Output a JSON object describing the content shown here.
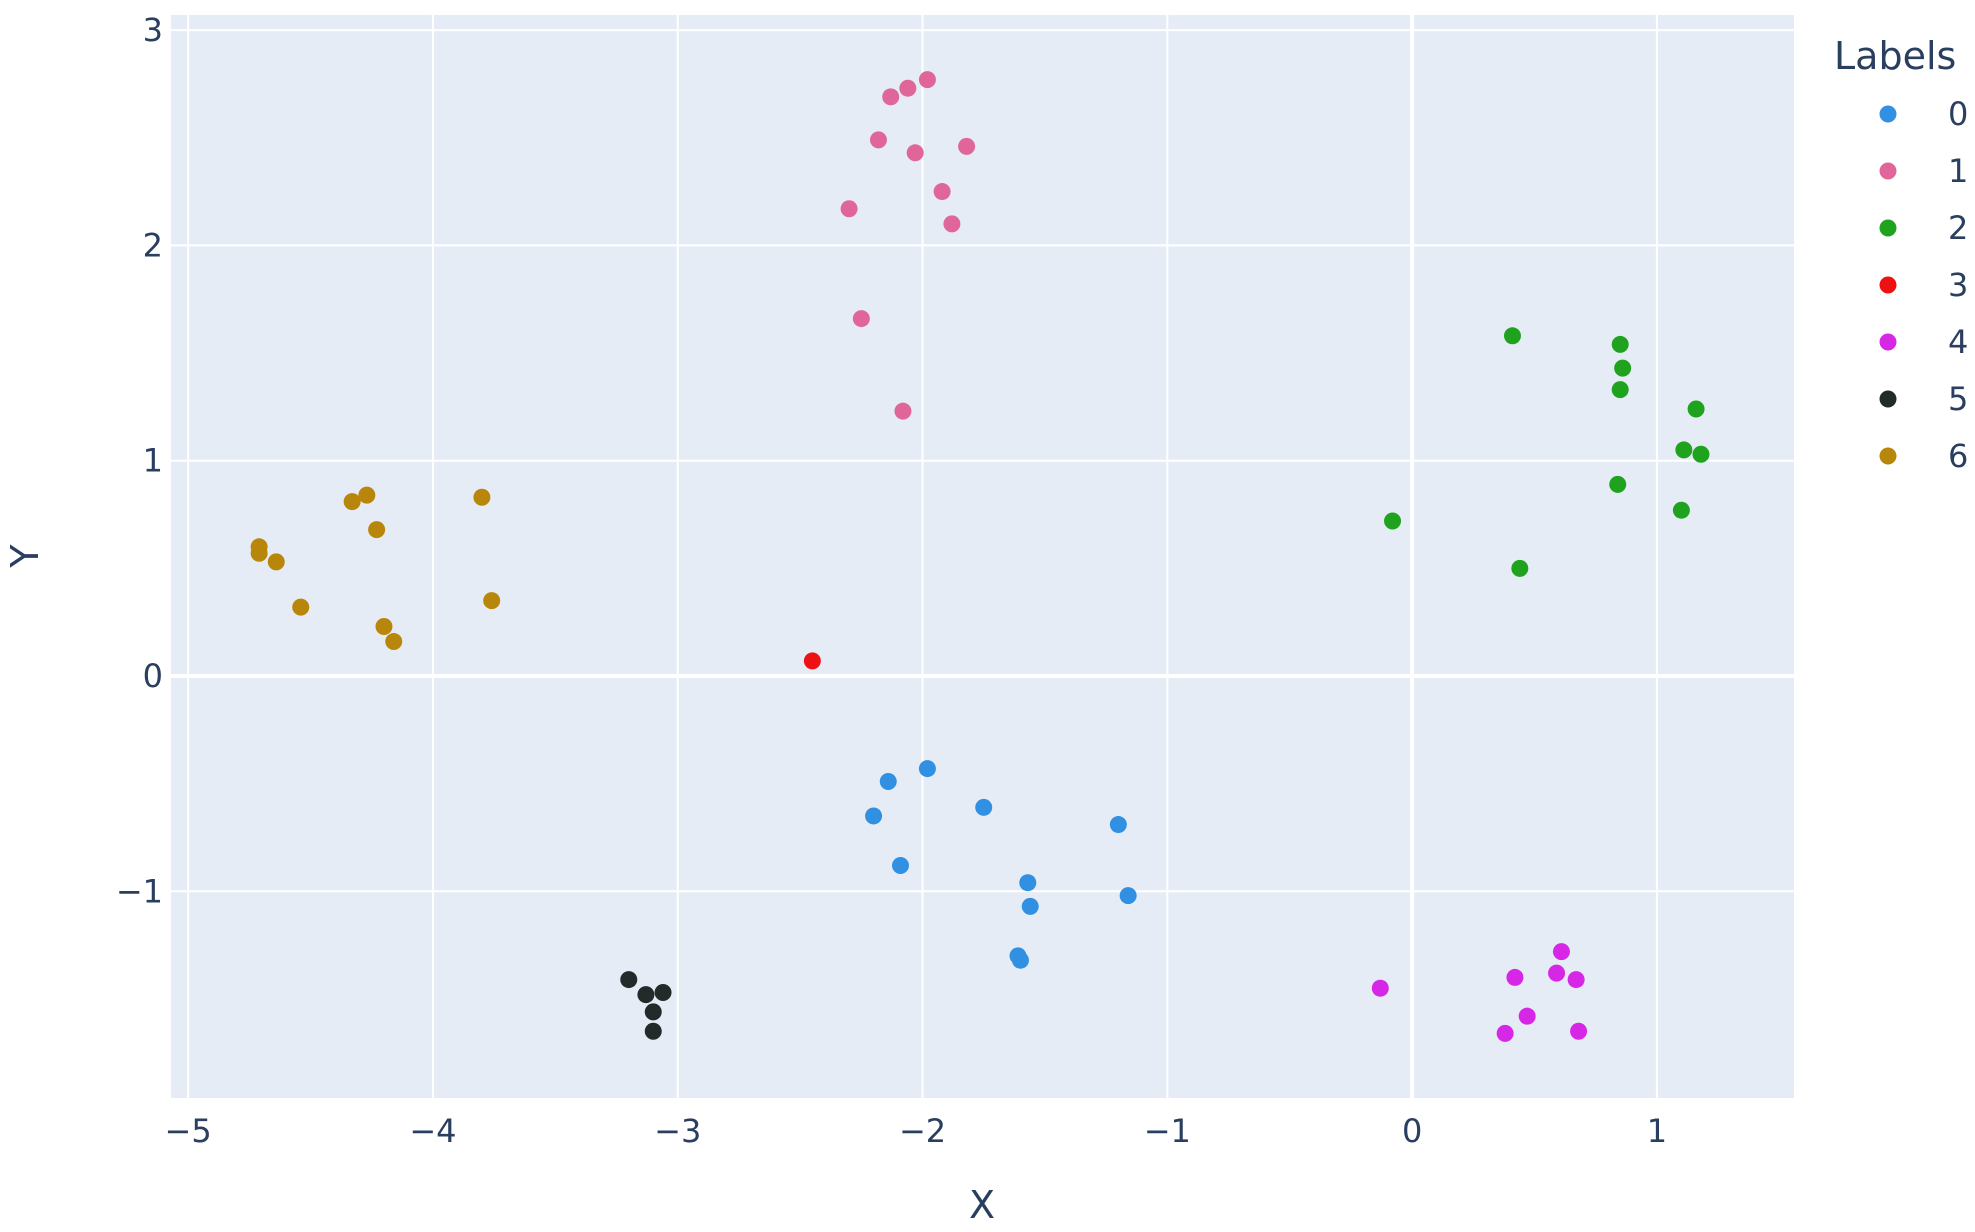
{
  "chart_data": {
    "type": "scatter",
    "title": "",
    "xlabel": "X",
    "ylabel": "Y",
    "xlim": [
      -5.07,
      1.56
    ],
    "ylim": [
      -1.96,
      3.07
    ],
    "x_ticks": [
      -5,
      -4,
      -3,
      -2,
      -1,
      0,
      1
    ],
    "x_tick_labels": [
      "−5",
      "−4",
      "−3",
      "−2",
      "−1",
      "0",
      "1"
    ],
    "y_ticks": [
      -1,
      0,
      1,
      2,
      3
    ],
    "y_tick_labels": [
      "−1",
      "0",
      "1",
      "2",
      "3"
    ],
    "grid": true,
    "plot_background": "#e5ecf6",
    "legend": {
      "title": "Labels",
      "placement": "top-right, outside plot"
    },
    "series": [
      {
        "name": "0",
        "color": "#3190e2",
        "points": [
          [
            -2.14,
            -0.49
          ],
          [
            -1.98,
            -0.43
          ],
          [
            -2.2,
            -0.65
          ],
          [
            -1.75,
            -0.61
          ],
          [
            -1.2,
            -0.69
          ],
          [
            -2.09,
            -0.88
          ],
          [
            -1.57,
            -0.96
          ],
          [
            -1.16,
            -1.02
          ],
          [
            -1.56,
            -1.07
          ],
          [
            -1.61,
            -1.3
          ],
          [
            -1.6,
            -1.32
          ]
        ]
      },
      {
        "name": "1",
        "color": "#e0669a",
        "points": [
          [
            -1.98,
            2.77
          ],
          [
            -2.06,
            2.73
          ],
          [
            -2.13,
            2.69
          ],
          [
            -2.18,
            2.49
          ],
          [
            -2.03,
            2.43
          ],
          [
            -1.82,
            2.46
          ],
          [
            -1.92,
            2.25
          ],
          [
            -2.3,
            2.17
          ],
          [
            -1.88,
            2.1
          ],
          [
            -2.25,
            1.66
          ],
          [
            -2.08,
            1.23
          ]
        ]
      },
      {
        "name": "2",
        "color": "#1fa31f",
        "points": [
          [
            0.41,
            1.58
          ],
          [
            0.85,
            1.54
          ],
          [
            0.86,
            1.43
          ],
          [
            0.85,
            1.33
          ],
          [
            1.16,
            1.24
          ],
          [
            1.11,
            1.05
          ],
          [
            1.18,
            1.03
          ],
          [
            0.84,
            0.89
          ],
          [
            1.1,
            0.77
          ],
          [
            -0.08,
            0.72
          ],
          [
            0.44,
            0.5
          ]
        ]
      },
      {
        "name": "3",
        "color": "#ee1111",
        "points": [
          [
            -2.45,
            0.07
          ]
        ]
      },
      {
        "name": "4",
        "color": "#d627e6",
        "points": [
          [
            0.61,
            -1.28
          ],
          [
            0.59,
            -1.38
          ],
          [
            0.67,
            -1.41
          ],
          [
            0.42,
            -1.4
          ],
          [
            -0.13,
            -1.45
          ],
          [
            0.47,
            -1.58
          ],
          [
            0.38,
            -1.66
          ],
          [
            0.68,
            -1.65
          ]
        ]
      },
      {
        "name": "5",
        "color": "#222a2a",
        "points": [
          [
            -3.2,
            -1.41
          ],
          [
            -3.13,
            -1.48
          ],
          [
            -3.06,
            -1.47
          ],
          [
            -3.1,
            -1.56
          ],
          [
            -3.1,
            -1.65
          ]
        ]
      },
      {
        "name": "6",
        "color": "#b8860b",
        "points": [
          [
            -4.71,
            0.6
          ],
          [
            -4.71,
            0.57
          ],
          [
            -4.64,
            0.53
          ],
          [
            -4.33,
            0.81
          ],
          [
            -4.27,
            0.84
          ],
          [
            -4.23,
            0.68
          ],
          [
            -3.8,
            0.83
          ],
          [
            -4.54,
            0.32
          ],
          [
            -4.2,
            0.23
          ],
          [
            -4.16,
            0.16
          ],
          [
            -3.76,
            0.35
          ]
        ]
      }
    ]
  }
}
